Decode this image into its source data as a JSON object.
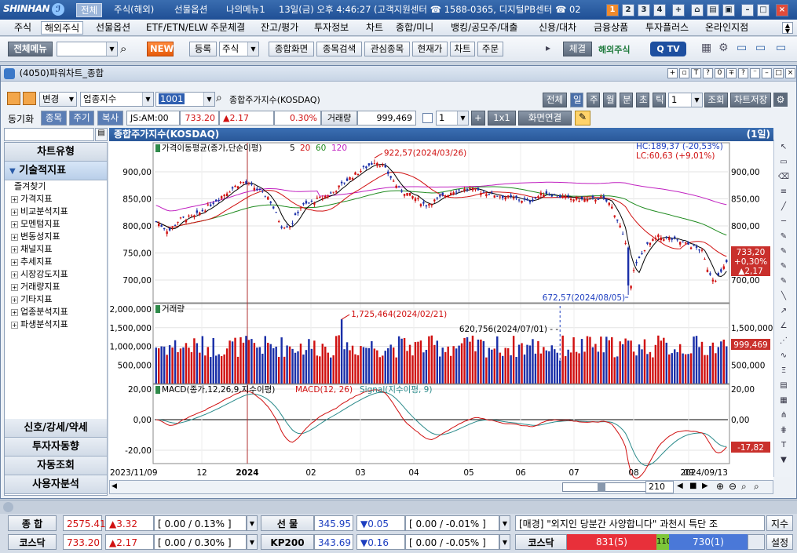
{
  "topbar": {
    "logo": "SHINHAN",
    "tabs": [
      "전체",
      "주식(해외)",
      "선물옵션",
      "나의메뉴1"
    ],
    "datetime": "13일(금) 오후 4:46:27",
    "support": "(고객지원센터 ☎ 1588-0365, 디지털PB센터 ☎ 02",
    "nums": [
      "1",
      "2",
      "3",
      "4"
    ]
  },
  "menu": [
    "주식",
    "해외주식",
    "선물옵션",
    "ETF/ETN/ELW",
    "주문체결",
    "잔고/평가",
    "투자정보",
    "차트",
    "종합/미니",
    "뱅킹/공모주/대출",
    "신용/대차",
    "금융상품",
    "투자플러스",
    "온라인지점"
  ],
  "menu_selected": 1,
  "toolbar": {
    "all_menu": "전체메뉴",
    "new": "NEW",
    "register": "등록",
    "stock_combo": "주식",
    "buttons": [
      "종합화면",
      "종목검색",
      "관심종목",
      "현재가",
      "차트",
      "주문"
    ],
    "exec": "체결",
    "overseas": "해외주식"
  },
  "window": {
    "title": "(4050)파워차트_종합"
  },
  "controls": {
    "change": "변경",
    "industry": "업종지수",
    "code": "1001",
    "name": "종합주가지수(KOSDAQ)",
    "periods": [
      "전체",
      "일",
      "주",
      "월",
      "분",
      "초",
      "틱"
    ],
    "period_count": "1",
    "lookup": "조회",
    "save": "차트저장",
    "sync": "동기화",
    "tabs": [
      "종목",
      "주기",
      "복사"
    ],
    "ticker": "JS:AM:00",
    "price": "733.20",
    "change_val": "▲2.17",
    "change_pct": "0.30%",
    "volume_label": "거래량",
    "volume": "999,469",
    "mult": "1",
    "plus": "+",
    "layout": "1x1",
    "link": "화면연결"
  },
  "sidebar": {
    "chart_type": "차트유형",
    "tech": "기술적지표",
    "favorites": "즐겨찾기",
    "items": [
      "가격지표",
      "비교분석지표",
      "모멘텀지표",
      "변동성지표",
      "채널지표",
      "추세지표",
      "시장강도지표",
      "거래량지표",
      "기타지표",
      "업종분석지표",
      "파생분석지표"
    ],
    "bottom": [
      "신호/강세/약세",
      "투자자동향",
      "자동조회",
      "사용자분석"
    ]
  },
  "chart": {
    "title": "종합주가지수(KOSDAQ)",
    "period_tag": "(1일)",
    "ma_label": "가격이동평균(종가,단순이평)",
    "ma_periods": [
      "5",
      "20",
      "60",
      "120"
    ],
    "hc": "HC:189,37 (-20,53%)",
    "lc": "LC:60,63 (+9,01%)",
    "high_ann": "922,57(2024/03/26)",
    "low_ann": "672,57(2024/08/05)",
    "price_ticks": [
      "900,00",
      "850,00",
      "800,00",
      "750,00",
      "700,00"
    ],
    "price_box": [
      "733,20",
      "+0,30%",
      "▲2,17"
    ],
    "vol_label": "거래량",
    "vol_ticks": [
      "2,000,000",
      "1,500,000",
      "1,000,000",
      "500,000"
    ],
    "vol_rticks": [
      "1,500,000",
      "500,000"
    ],
    "vol_box": "999,469",
    "vol_high_ann": "1,725,464(2024/02/21)",
    "vol_ann2": "620,756(2024/07/01)",
    "macd_label": "MACD(종가,12,26,9,지수이평)",
    "macd_name": "MACD(12, 26)",
    "signal_name": "Signal(지수이평, 9)",
    "macd_ticks": [
      "20,00",
      "0,00",
      "-20,00"
    ],
    "macd_rticks": [
      "20,00",
      "0,00"
    ],
    "macd_box": "-17,82",
    "x_ticks": [
      "2023/11/09",
      "12",
      "2024",
      "02",
      "03",
      "04",
      "05",
      "06",
      "07",
      "08",
      "09",
      "2024/09/13"
    ],
    "zoom": "210",
    "colors": {
      "up": "#d01010",
      "down": "#1a2fa8",
      "ma5": "#000000",
      "ma20": "#d01010",
      "ma60": "#1e8a1e",
      "ma120": "#c020c0",
      "macd": "#d01010",
      "signal": "#2a8a8a"
    }
  },
  "bottom": {
    "row1": {
      "label": "종  합",
      "price": "2575.41",
      "chg": "▲3.32",
      "rng": "[ 0.00  / 0.13% ]",
      "label2": "선  물",
      "price2": "345.95",
      "chg2": "▼0.05",
      "rng2": "[ 0.00  / -0.01% ]",
      "news_tag": "[매경]",
      "news": "\"외지인 당분간 사양합니다\" 과천시 특단 조",
      "btn": "지수"
    },
    "row2": {
      "label": "코스닥",
      "price": "733.20",
      "chg": "▲2.17",
      "rng": "[ 0.00  / 0.30% ]",
      "label2": "KP200",
      "price2": "343.69",
      "chg2": "▼0.16",
      "rng2": "[ 0.00  / -0.05% ]",
      "label3": "코스닥",
      "bar_up": "831(5)",
      "bar_mid": "110",
      "bar_dn": "730(1)",
      "btn": "설정"
    }
  }
}
